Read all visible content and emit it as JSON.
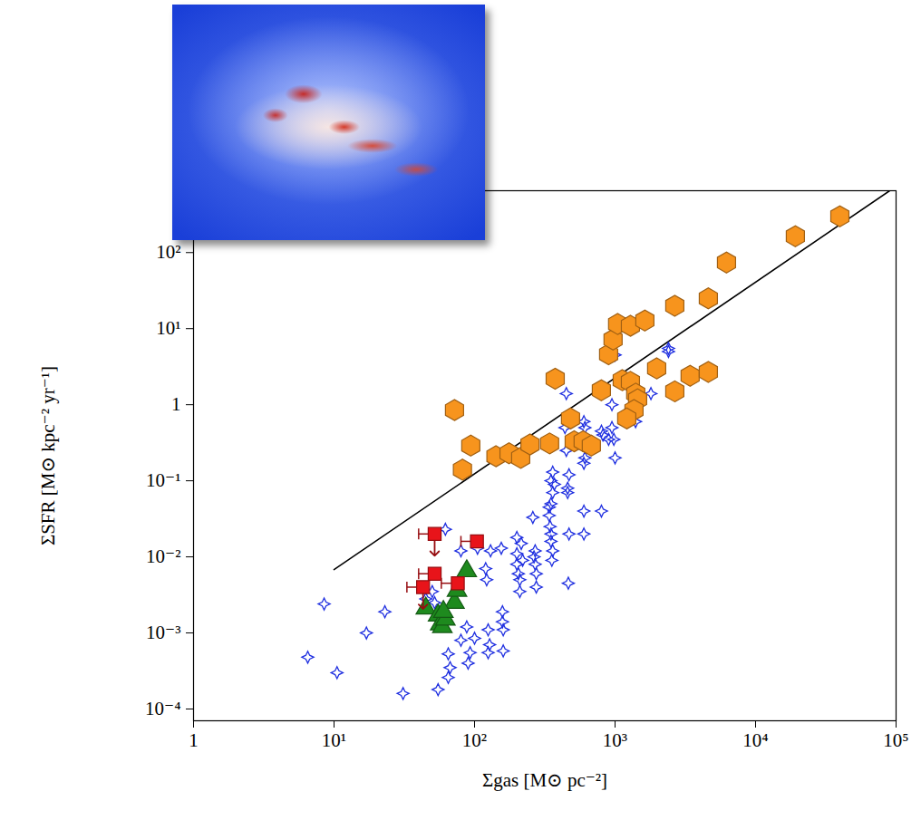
{
  "chart_data": {
    "type": "scatter",
    "x_label": "Σgas [M⊙ pc⁻²]",
    "y_label": "ΣSFR [M⊙ kpc⁻² yr⁻¹]",
    "log": true,
    "xlim": [
      1,
      100000
    ],
    "ylim": [
      7e-05,
      650
    ],
    "xticks": [
      1,
      {
        "value": 10,
        "label": "10¹"
      },
      {
        "value": 100,
        "label": "10²"
      },
      {
        "value": 1000,
        "label": "10³"
      },
      {
        "value": 10000,
        "label": "10⁴"
      },
      {
        "value": 100000,
        "label": "10⁵"
      }
    ],
    "yticks": [
      {
        "value": 0.0001,
        "label": "10⁻⁴"
      },
      {
        "value": 0.001,
        "label": "10⁻³"
      },
      {
        "value": 0.01,
        "label": "10⁻²"
      },
      {
        "value": 0.1,
        "label": "10⁻¹"
      },
      1,
      {
        "value": 10,
        "label": "10¹"
      },
      {
        "value": 100,
        "label": "10²"
      }
    ],
    "series": [
      {
        "type": "line",
        "color": "#000000",
        "line_style": "solid",
        "x": [
          10,
          90000
        ],
        "values": [
          0.0068,
          650
        ]
      },
      {
        "type": "scatter",
        "color": "#1f2fe0",
        "marker": "star4",
        "x": [
          6.5,
          8.5,
          10.5,
          17,
          23,
          31,
          45,
          50,
          52,
          55,
          62,
          65,
          65,
          67,
          80,
          80,
          88,
          90,
          93,
          100,
          105,
          120,
          122,
          125,
          125,
          128,
          130,
          155,
          158,
          158,
          160,
          160,
          200,
          200,
          200,
          205,
          210,
          210,
          215,
          220,
          260,
          265,
          270,
          270,
          275,
          275,
          340,
          340,
          345,
          350,
          350,
          350,
          350,
          360,
          360,
          360,
          355,
          370,
          440,
          450,
          450,
          460,
          460,
          470,
          465,
          470,
          600,
          610,
          610,
          600,
          600,
          600,
          800,
          800,
          820,
          900,
          950,
          950,
          980,
          1000,
          1000,
          1400,
          1400,
          1400,
          1800,
          2400,
          2400
        ],
        "values": [
          0.00048,
          0.0024,
          0.0003,
          0.001,
          0.0019,
          0.00016,
          0.0028,
          0.0035,
          0.0025,
          0.00018,
          0.023,
          0.00053,
          0.00026,
          0.00035,
          0.012,
          0.0008,
          0.0012,
          0.0004,
          0.00055,
          0.00085,
          0.013,
          0.007,
          0.005,
          0.0011,
          0.00055,
          0.0007,
          0.012,
          0.013,
          0.0019,
          0.0014,
          0.0011,
          0.00058,
          0.018,
          0.011,
          0.008,
          0.006,
          0.005,
          0.0035,
          0.015,
          0.009,
          0.033,
          0.01,
          0.012,
          0.008,
          0.006,
          0.004,
          0.045,
          0.035,
          0.025,
          0.02,
          0.016,
          0.05,
          0.1,
          0.13,
          0.07,
          0.012,
          0.009,
          0.09,
          0.5,
          1.4,
          0.25,
          0.08,
          0.07,
          0.02,
          0.0045,
          0.12,
          0.6,
          0.5,
          0.2,
          0.17,
          0.04,
          0.02,
          0.45,
          0.04,
          0.4,
          0.35,
          1.0,
          0.5,
          0.35,
          0.2,
          4.5,
          1.0,
          0.8,
          0.6,
          1.4,
          5.5,
          5.0
        ]
      },
      {
        "type": "scatter",
        "color": "#1e8a1e",
        "marker": "triangle",
        "x": [
          45,
          55,
          57,
          59,
          62,
          72,
          75,
          88,
          60
        ],
        "values": [
          0.0021,
          0.0017,
          0.0013,
          0.0012,
          0.0015,
          0.0025,
          0.0036,
          0.0065,
          0.0019
        ]
      },
      {
        "type": "scatter",
        "color": "#e8141a",
        "marker": "square",
        "x": [
          52,
          104,
          52,
          43,
          76
        ],
        "values": [
          0.02,
          0.016,
          0.006,
          0.004,
          0.0045
        ],
        "x_err_low": [
          40,
          80,
          40,
          33,
          58
        ],
        "x_err_high": [
          56,
          110,
          56,
          46,
          82
        ],
        "upper_limit": [
          true,
          false,
          false,
          true,
          false
        ]
      },
      {
        "type": "scatter",
        "color": "#f7941d",
        "marker": "hexagon",
        "x": [
          72,
          82,
          94,
          142,
          176,
          213,
          248,
          342,
          482,
          512,
          593,
          678,
          375,
          900,
          968,
          1043,
          1286,
          799,
          1125,
          1286,
          1403,
          1447,
          1364,
          1211,
          1630,
          2662,
          4613,
          6210,
          1977,
          2662,
          3423,
          4613,
          19200,
          39800
        ],
        "values": [
          0.85,
          0.14,
          0.29,
          0.21,
          0.23,
          0.2,
          0.3,
          0.31,
          0.66,
          0.33,
          0.33,
          0.29,
          2.2,
          4.6,
          7.2,
          11.5,
          10.9,
          1.55,
          2.1,
          2.0,
          1.4,
          1.18,
          0.85,
          0.66,
          12.8,
          20,
          25,
          74,
          3.0,
          1.5,
          2.4,
          2.7,
          164,
          300
        ]
      }
    ]
  }
}
